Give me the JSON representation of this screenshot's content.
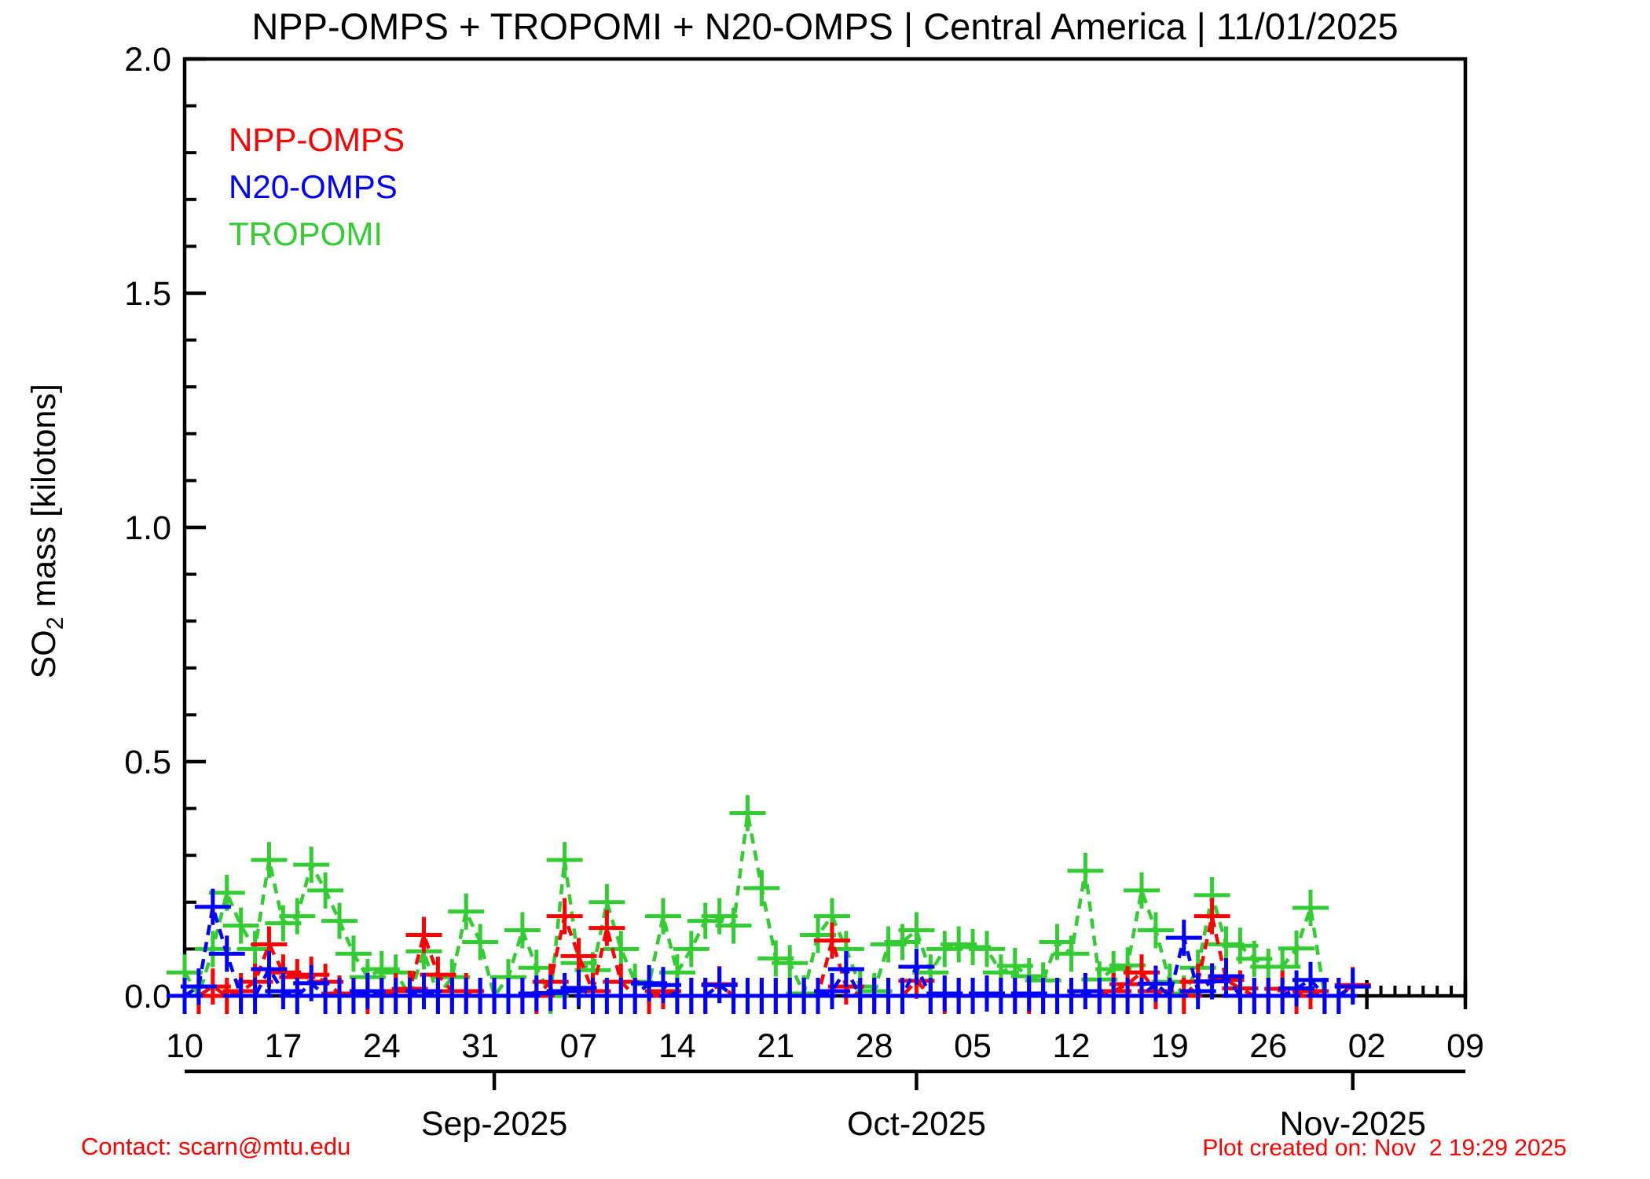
{
  "title": "NPP-OMPS + TROPOMI + N20-OMPS | Central America | 11/01/2025",
  "legend": {
    "items": [
      {
        "label": "NPP-OMPS",
        "color": "#FF0000"
      },
      {
        "label": "N20-OMPS",
        "color": "#0000FF"
      },
      {
        "label": "TROPOMI",
        "color": "#33CC33"
      }
    ]
  },
  "footer": {
    "contact": "Contact: scarn@mtu.edu",
    "created": "Plot created on: Nov  2 19:29 2025",
    "color": "#FF0000"
  },
  "chart_data": {
    "type": "line",
    "title": "NPP-OMPS + TROPOMI + N20-OMPS | Central America | 11/01/2025",
    "ylabel": "SO2 mass [kilotons]",
    "ylabel_parts": {
      "pre": "SO",
      "sub": "2",
      "post": " mass [kilotons]"
    },
    "ylim": [
      0,
      2.0
    ],
    "y_major_ticks": [
      0.0,
      0.5,
      1.0,
      1.5,
      2.0
    ],
    "y_major_tick_labels": [
      "0.0",
      "0.5",
      "1.0",
      "1.5",
      "2.0"
    ],
    "y_minor_interval": 0.1,
    "x_start_date": "2025-08-10",
    "x_end_date": "2025-11-09",
    "x_total_days": 91,
    "x_major_tick_days": [
      0,
      7,
      14,
      21,
      28,
      35,
      42,
      49,
      56,
      63,
      70,
      77,
      84,
      91
    ],
    "x_major_tick_labels": [
      "10",
      "17",
      "24",
      "31",
      "07",
      "14",
      "21",
      "28",
      "05",
      "12",
      "19",
      "26",
      "02",
      "09"
    ],
    "x_minor_tick_interval_days": 1,
    "month_axis": {
      "ticks": [
        {
          "label": "Sep-2025",
          "day": 22
        },
        {
          "label": "Oct-2025",
          "day": 52
        },
        {
          "label": "Nov-2025",
          "day": 83
        }
      ]
    },
    "grid": false,
    "legend_position": "top-left-inside",
    "line_style": "dashed",
    "marker": "plus",
    "series": [
      {
        "name": "NPP-OMPS",
        "color": "#FF0000",
        "start_date": "2025-08-10",
        "daily_values": [
          0.0,
          0.0,
          0.02,
          0.0,
          0.01,
          0.03,
          0.11,
          0.05,
          0.04,
          0.045,
          0.03,
          0.005,
          0.0,
          0.0,
          0.0,
          0.01,
          0.015,
          0.13,
          0.045,
          0.01,
          0.01,
          0.0,
          0.0,
          0.0,
          0.0,
          0.0,
          0.03,
          0.17,
          0.085,
          0.01,
          0.145,
          0.03,
          0.0,
          0.0,
          0.01,
          0.0,
          0.0,
          0.0,
          0.025,
          0.0,
          0.0,
          0.0,
          0.0,
          0.0,
          0.0,
          0.0,
          0.118,
          0.02,
          0.0,
          0.0,
          0.0,
          0.0,
          0.032,
          0.0,
          0.0,
          0.0,
          0.0,
          0.005,
          0.0,
          0.0,
          0.0,
          0.0,
          0.0,
          0.0,
          0.01,
          0.0,
          0.01,
          0.025,
          0.05,
          0.01,
          0.0,
          0.0,
          0.03,
          0.17,
          0.034,
          0.016,
          0.0,
          0.0,
          0.015,
          0.0,
          0.01,
          0.0,
          0.0,
          0.023
        ]
      },
      {
        "name": "N20-OMPS",
        "color": "#0000FF",
        "start_date": "2025-08-10",
        "daily_values": [
          0.0,
          0.02,
          0.19,
          0.09,
          0.0,
          0.0,
          0.057,
          0.01,
          0.0,
          0.027,
          0.0,
          0.0,
          0.0,
          0.01,
          0.0,
          0.0,
          0.0,
          0.01,
          0.0,
          0.0,
          0.0,
          0.0,
          0.0,
          0.0,
          0.0,
          0.005,
          0.006,
          0.01,
          0.017,
          0.0,
          0.0,
          0.0,
          0.0,
          0.027,
          0.023,
          0.0,
          0.0,
          0.0,
          0.023,
          0.0,
          0.0,
          0.0,
          0.0,
          0.0,
          0.0,
          0.0,
          0.01,
          0.057,
          0.0,
          0.0,
          0.0,
          0.0,
          0.062,
          0.0,
          0.005,
          0.0,
          0.0,
          0.005,
          0.0,
          0.0,
          0.005,
          0.0,
          0.0,
          0.0,
          0.01,
          0.0,
          0.0,
          0.0,
          0.0,
          0.026,
          0.0,
          0.124,
          0.01,
          0.031,
          0.042,
          0.0,
          0.0,
          0.0,
          0.0,
          0.016,
          0.034,
          0.0,
          0.0,
          0.02
        ]
      },
      {
        "name": "TROPOMI",
        "color": "#33CC33",
        "start_date": "2025-08-10",
        "daily_values": [
          0.05,
          0.0,
          0.1,
          0.22,
          0.15,
          0.1,
          0.29,
          0.155,
          0.17,
          0.28,
          0.225,
          0.16,
          0.09,
          0.04,
          0.057,
          0.05,
          0.0,
          0.095,
          0.0,
          0.04,
          0.18,
          0.115,
          0.0,
          0.04,
          0.14,
          0.06,
          0.0,
          0.29,
          0.07,
          0.055,
          0.2,
          0.1,
          0.03,
          0.025,
          0.17,
          0.05,
          0.1,
          0.16,
          0.17,
          0.15,
          0.39,
          0.23,
          0.08,
          0.07,
          0.005,
          0.13,
          0.17,
          0.1,
          0.02,
          0.01,
          0.11,
          0.115,
          0.14,
          0.05,
          0.1,
          0.11,
          0.104,
          0.1,
          0.05,
          0.064,
          0.042,
          0.033,
          0.115,
          0.09,
          0.267,
          0.035,
          0.057,
          0.065,
          0.225,
          0.14,
          0.03,
          0.005,
          0.06,
          0.215,
          0.11,
          0.107,
          0.079,
          0.062,
          0.062,
          0.101,
          0.188,
          0.0,
          null,
          null
        ]
      }
    ]
  }
}
